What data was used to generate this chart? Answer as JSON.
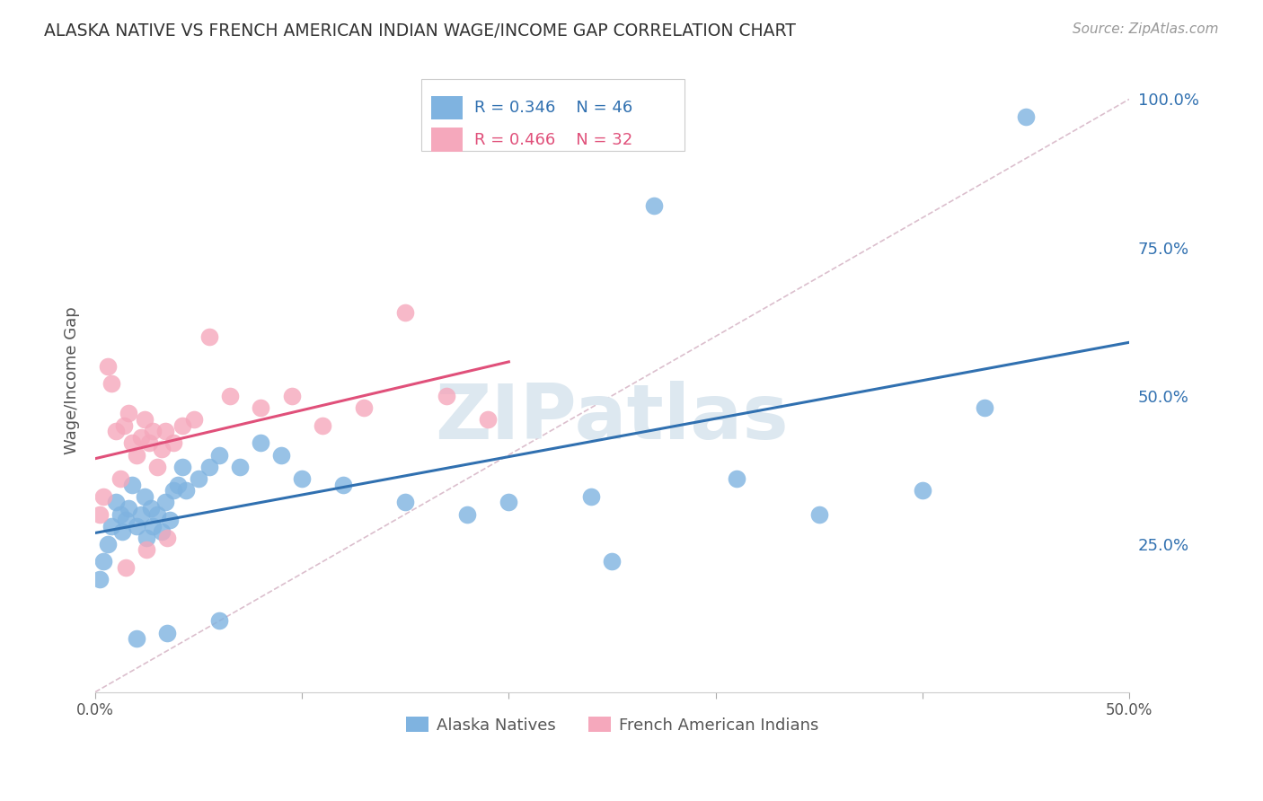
{
  "title": "ALASKA NATIVE VS FRENCH AMERICAN INDIAN WAGE/INCOME GAP CORRELATION CHART",
  "source": "Source: ZipAtlas.com",
  "ylabel": "Wage/Income Gap",
  "xlim": [
    0.0,
    0.5
  ],
  "ylim": [
    0.0,
    1.05
  ],
  "xticks": [
    0.0,
    0.1,
    0.2,
    0.3,
    0.4,
    0.5
  ],
  "xtick_labels": [
    "0.0%",
    "",
    "",
    "",
    "",
    "50.0%"
  ],
  "ytick_labels": [
    "25.0%",
    "50.0%",
    "75.0%",
    "100.0%"
  ],
  "yticks": [
    0.25,
    0.5,
    0.75,
    1.0
  ],
  "background_color": "#ffffff",
  "grid_color": "#dddddd",
  "alaska_color": "#7fb3e0",
  "french_color": "#f5a8bc",
  "alaska_line_color": "#3070b0",
  "french_line_color": "#e0507a",
  "diagonal_color": "#d8b8c8",
  "watermark_color": "#dde8f0",
  "watermark": "ZIPatlas",
  "legend_R_alaska": "0.346",
  "legend_N_alaska": "46",
  "legend_R_french": "0.466",
  "legend_N_french": "32",
  "alaska_x": [
    0.002,
    0.004,
    0.006,
    0.008,
    0.01,
    0.012,
    0.013,
    0.015,
    0.016,
    0.018,
    0.02,
    0.022,
    0.024,
    0.025,
    0.027,
    0.028,
    0.03,
    0.032,
    0.034,
    0.036,
    0.038,
    0.04,
    0.042,
    0.044,
    0.05,
    0.055,
    0.06,
    0.07,
    0.08,
    0.09,
    0.1,
    0.12,
    0.15,
    0.18,
    0.2,
    0.24,
    0.27,
    0.31,
    0.35,
    0.4,
    0.43,
    0.45,
    0.25,
    0.06,
    0.02,
    0.035
  ],
  "alaska_y": [
    0.19,
    0.22,
    0.25,
    0.28,
    0.32,
    0.3,
    0.27,
    0.29,
    0.31,
    0.35,
    0.28,
    0.3,
    0.33,
    0.26,
    0.31,
    0.28,
    0.3,
    0.27,
    0.32,
    0.29,
    0.34,
    0.35,
    0.38,
    0.34,
    0.36,
    0.38,
    0.4,
    0.38,
    0.42,
    0.4,
    0.36,
    0.35,
    0.32,
    0.3,
    0.32,
    0.33,
    0.82,
    0.36,
    0.3,
    0.34,
    0.48,
    0.97,
    0.22,
    0.12,
    0.09,
    0.1
  ],
  "french_x": [
    0.002,
    0.004,
    0.006,
    0.008,
    0.01,
    0.012,
    0.014,
    0.016,
    0.018,
    0.02,
    0.022,
    0.024,
    0.026,
    0.028,
    0.03,
    0.032,
    0.034,
    0.038,
    0.042,
    0.048,
    0.055,
    0.065,
    0.08,
    0.095,
    0.11,
    0.13,
    0.15,
    0.17,
    0.19,
    0.015,
    0.025,
    0.035
  ],
  "french_y": [
    0.3,
    0.33,
    0.55,
    0.52,
    0.44,
    0.36,
    0.45,
    0.47,
    0.42,
    0.4,
    0.43,
    0.46,
    0.42,
    0.44,
    0.38,
    0.41,
    0.44,
    0.42,
    0.45,
    0.46,
    0.6,
    0.5,
    0.48,
    0.5,
    0.45,
    0.48,
    0.64,
    0.5,
    0.46,
    0.21,
    0.24,
    0.26
  ]
}
